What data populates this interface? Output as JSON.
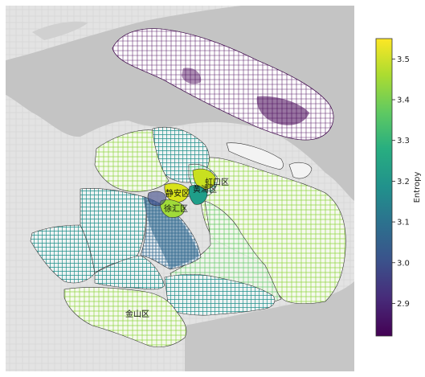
{
  "map": {
    "colors": {
      "land": "#e6e6e6",
      "water": "#c6c6c6",
      "river": "#b9b9b9",
      "boundary": "#111111",
      "low": "#440154",
      "mid_low": "#31688e",
      "mid": "#21918c",
      "mid_high": "#35b779",
      "high": "#90d743",
      "top": "#fde725"
    },
    "district_labels": [
      {
        "id": "label-north",
        "text": "虹口区"
      },
      {
        "id": "label-center-west",
        "text": "静安区"
      },
      {
        "id": "label-center-east",
        "text": "黄浦区"
      },
      {
        "id": "label-center-south",
        "text": "徐汇区"
      },
      {
        "id": "label-southwest",
        "text": "金山区"
      }
    ]
  },
  "colorbar": {
    "label": "Entropy",
    "ticks": [
      "3.5",
      "3.4",
      "3.3",
      "3.2",
      "3.1",
      "3.0",
      "2.9"
    ],
    "tick_values": [
      3.5,
      3.4,
      3.3,
      3.2,
      3.1,
      3.0,
      2.9
    ],
    "vmin": 2.82,
    "vmax": 3.55,
    "colormap": "viridis"
  }
}
